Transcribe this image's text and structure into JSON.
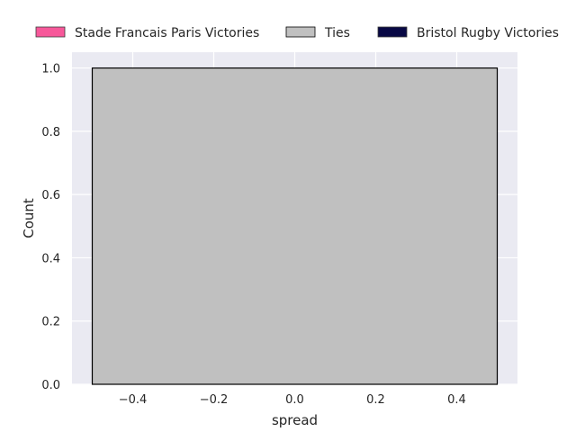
{
  "chart_data": {
    "type": "bar",
    "title": "",
    "xlabel": "spread",
    "ylabel": "Count",
    "xlim": [
      -0.55,
      0.55
    ],
    "ylim": [
      0,
      1.05
    ],
    "xticks": [
      -0.4,
      -0.2,
      0.0,
      0.2,
      0.4
    ],
    "xtick_labels": [
      "−0.4",
      "−0.2",
      "0.0",
      "0.2",
      "0.4"
    ],
    "yticks": [
      0.0,
      0.2,
      0.4,
      0.6,
      0.8,
      1.0
    ],
    "ytick_labels": [
      "0.0",
      "0.2",
      "0.4",
      "0.6",
      "0.8",
      "1.0"
    ],
    "grid": true,
    "legend_position": "top",
    "series": [
      {
        "name": "Stade Francais Paris Victories",
        "color": "#f7589a",
        "edge": "#3a3a3a",
        "bins": []
      },
      {
        "name": "Ties",
        "color": "#c0c0c0",
        "edge": "#000000",
        "bins": [
          {
            "x0": -0.5,
            "x1": 0.5,
            "value": 1
          }
        ]
      },
      {
        "name": "Bristol Rugby Victories",
        "color": "#080844",
        "edge": "#3a3a3a",
        "bins": []
      }
    ]
  }
}
